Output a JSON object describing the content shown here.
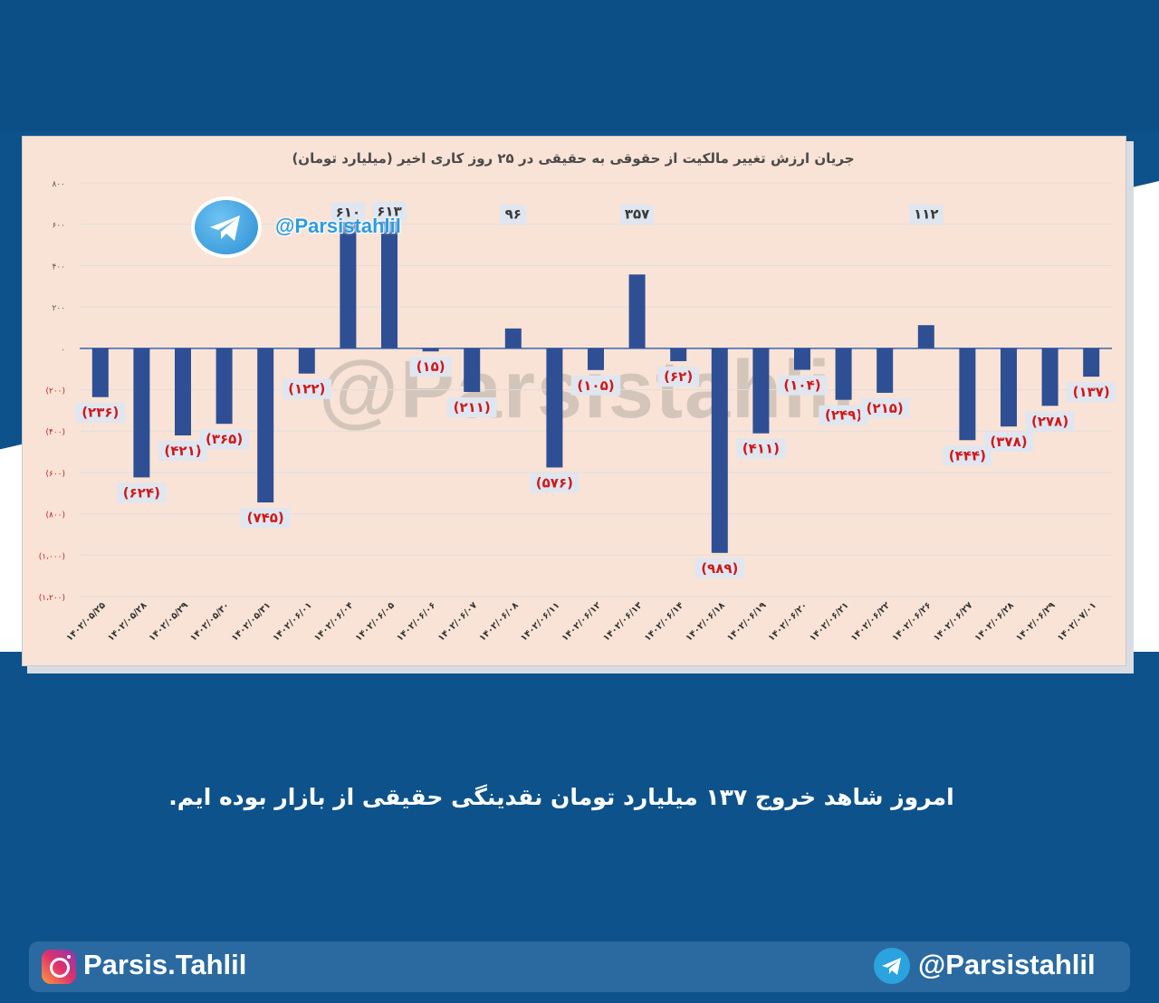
{
  "chart_data": {
    "type": "bar",
    "title": "جریان ارزش تغییر مالکیت از حقوقی به حقیقی در ۲۵ روز کاری اخیر (میلیارد تومان)",
    "xlabel": "",
    "ylabel": "",
    "ylim": [
      -1200,
      800
    ],
    "grid": true,
    "y_ticks": [
      {
        "value": 800,
        "label": "۸۰۰"
      },
      {
        "value": 600,
        "label": "۶۰۰"
      },
      {
        "value": 400,
        "label": "۴۰۰"
      },
      {
        "value": 200,
        "label": "۲۰۰"
      },
      {
        "value": 0,
        "label": "۰"
      },
      {
        "value": -200,
        "label": "(۲۰۰)"
      },
      {
        "value": -400,
        "label": "(۴۰۰)"
      },
      {
        "value": -600,
        "label": "(۶۰۰)"
      },
      {
        "value": -800,
        "label": "(۸۰۰)"
      },
      {
        "value": -1000,
        "label": "(۱،۰۰۰)"
      },
      {
        "value": -1200,
        "label": "(۱،۲۰۰)"
      }
    ],
    "categories": [
      "۱۴۰۲/۰۵/۲۵",
      "۱۴۰۲/۰۵/۲۸",
      "۱۴۰۲/۰۵/۲۹",
      "۱۴۰۲/۰۵/۳۰",
      "۱۴۰۲/۰۵/۳۱",
      "۱۴۰۲/۰۶/۰۱",
      "۱۴۰۲/۰۶/۰۴",
      "۱۴۰۲/۰۶/۰۵",
      "۱۴۰۲/۰۶/۰۶",
      "۱۴۰۲/۰۶/۰۷",
      "۱۴۰۲/۰۶/۰۸",
      "۱۴۰۲/۰۶/۱۱",
      "۱۴۰۲/۰۶/۱۲",
      "۱۴۰۲/۰۶/۱۳",
      "۱۴۰۲/۰۶/۱۴",
      "۱۴۰۲/۰۶/۱۸",
      "۱۴۰۲/۰۶/۱۹",
      "۱۴۰۲/۰۶/۲۰",
      "۱۴۰۲/۰۶/۲۱",
      "۱۴۰۲/۰۶/۲۲",
      "۱۴۰۲/۰۶/۲۶",
      "۱۴۰۲/۰۶/۲۷",
      "۱۴۰۲/۰۶/۲۸",
      "۱۴۰۲/۰۶/۲۹",
      "۱۴۰۲/۰۷/۰۱"
    ],
    "values": [
      -236,
      -624,
      -421,
      -365,
      -745,
      -122,
      610,
      613,
      -15,
      -211,
      96,
      -576,
      -105,
      357,
      -62,
      -989,
      -411,
      -104,
      -249,
      -215,
      112,
      -444,
      -378,
      -278,
      -137
    ],
    "data_labels": [
      "(۲۳۶)",
      "(۶۲۴)",
      "(۴۲۱)",
      "(۳۶۵)",
      "(۷۴۵)",
      "(۱۲۲)",
      "۶۱۰",
      "۶۱۳",
      "(۱۵)",
      "(۲۱۱)",
      "۹۶",
      "(۵۷۶)",
      "(۱۰۵)",
      "۳۵۷",
      "(۶۲)",
      "(۹۸۹)",
      "(۴۱۱)",
      "(۱۰۴)",
      "(۲۴۹)",
      "(۲۱۵)",
      "۱۱۲",
      "(۴۴۴)",
      "(۳۷۸)",
      "(۲۷۸)",
      "(۱۳۷)"
    ],
    "colors": {
      "bar": "#2f4f94",
      "negative_label": "#d01818",
      "positive_label": "#3a3a3a",
      "label_bg": "#dfe6f0",
      "grid": "#dedede",
      "axis_tick_label": "#c02020"
    }
  },
  "watermark": {
    "telegram_handle": "@Parsistahlil",
    "big_text": "@Parsistahlil"
  },
  "caption": "امروز شاهد خروج ۱۳۷ میلیارد تومان نقدینگی حقیقی از بازار بوده ایم.",
  "footer": {
    "instagram_handle": "Parsis.Tahlil",
    "telegram_handle": "@Parsistahlil"
  }
}
